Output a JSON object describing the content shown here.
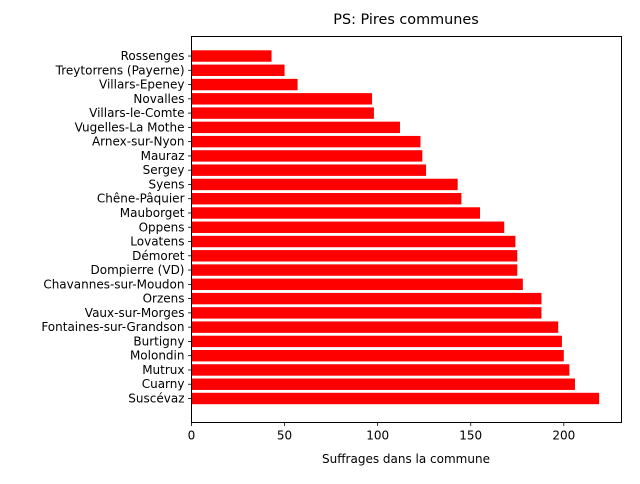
{
  "chart_data": {
    "type": "bar",
    "orientation": "horizontal",
    "title": "PS: Pires communes",
    "xlabel": "Suffrages dans la commune",
    "ylabel": "",
    "xlim": [
      0,
      231
    ],
    "xticks": [
      0,
      50,
      100,
      150,
      200
    ],
    "grid": false,
    "bar_color": "#ff0000",
    "categories": [
      "Suscévaz",
      "Cuarny",
      "Mutrux",
      "Molondin",
      "Burtigny",
      "Fontaines-sur-Grandson",
      "Vaux-sur-Morges",
      "Orzens",
      "Chavannes-sur-Moudon",
      "Dompierre (VD)",
      "Démoret",
      "Lovatens",
      "Oppens",
      "Mauborget",
      "Chêne-Pâquier",
      "Syens",
      "Sergey",
      "Mauraz",
      "Arnex-sur-Nyon",
      "Vugelles-La Mothe",
      "Villars-le-Comte",
      "Novalles",
      "Villars-Epeney",
      "Treytorrens (Payerne)",
      "Rossenges"
    ],
    "values": [
      219,
      206,
      203,
      200,
      199,
      197,
      188,
      188,
      178,
      175,
      175,
      174,
      168,
      155,
      145,
      143,
      126,
      124,
      123,
      112,
      98,
      97,
      57,
      50,
      43
    ]
  }
}
